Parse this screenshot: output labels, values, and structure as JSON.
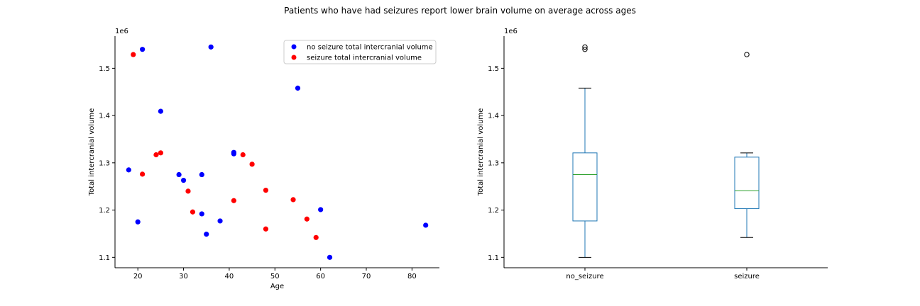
{
  "figure": {
    "title": "Patients who have had seizures report lower brain volume on average across ages"
  },
  "chart_data": [
    {
      "type": "scatter",
      "title": "",
      "xlabel": "Age",
      "ylabel": "Total intercranial volume",
      "offset_label": "1e6",
      "xlim": [
        15,
        86
      ],
      "ylim": [
        1.078,
        1.568
      ],
      "xticks": [
        20,
        30,
        40,
        50,
        60,
        70,
        80
      ],
      "yticks": [
        1.1,
        1.2,
        1.3,
        1.4,
        1.5
      ],
      "legend_position": "top-right",
      "series": [
        {
          "name": "no seizure total intercranial volume",
          "color": "#0000ff",
          "x": [
            21,
            36,
            55,
            25,
            41,
            41,
            18,
            29,
            34,
            30,
            20,
            34,
            38,
            35,
            60,
            62,
            83
          ],
          "y": [
            1.54,
            1.545,
            1.458,
            1.409,
            1.322,
            1.319,
            1.285,
            1.275,
            1.275,
            1.263,
            1.175,
            1.192,
            1.177,
            1.149,
            1.201,
            1.1,
            1.168
          ]
        },
        {
          "name": "seizure total intercranial volume",
          "color": "#ff0000",
          "x": [
            19,
            24,
            25,
            21,
            43,
            45,
            31,
            48,
            54,
            41,
            32,
            57,
            48,
            59
          ],
          "y": [
            1.529,
            1.317,
            1.321,
            1.276,
            1.317,
            1.297,
            1.24,
            1.242,
            1.222,
            1.22,
            1.196,
            1.181,
            1.16,
            1.142
          ]
        }
      ]
    },
    {
      "type": "box",
      "title": "",
      "xlabel": "",
      "ylabel": "Total intercranial volume",
      "offset_label": "1e6",
      "ylim": [
        1.078,
        1.568
      ],
      "yticks": [
        1.1,
        1.2,
        1.3,
        1.4,
        1.5
      ],
      "box_color": "#1f77b4",
      "median_color": "#2ca02c",
      "categories": [
        "no_seizure",
        "seizure"
      ],
      "boxes": [
        {
          "label": "no_seizure",
          "whisker_low": 1.1,
          "q1": 1.177,
          "median": 1.275,
          "q3": 1.321,
          "whisker_high": 1.458,
          "outliers": [
            1.54,
            1.545
          ]
        },
        {
          "label": "seizure",
          "whisker_low": 1.142,
          "q1": 1.203,
          "median": 1.241,
          "q3": 1.312,
          "whisker_high": 1.321,
          "outliers": [
            1.529
          ]
        }
      ]
    }
  ]
}
